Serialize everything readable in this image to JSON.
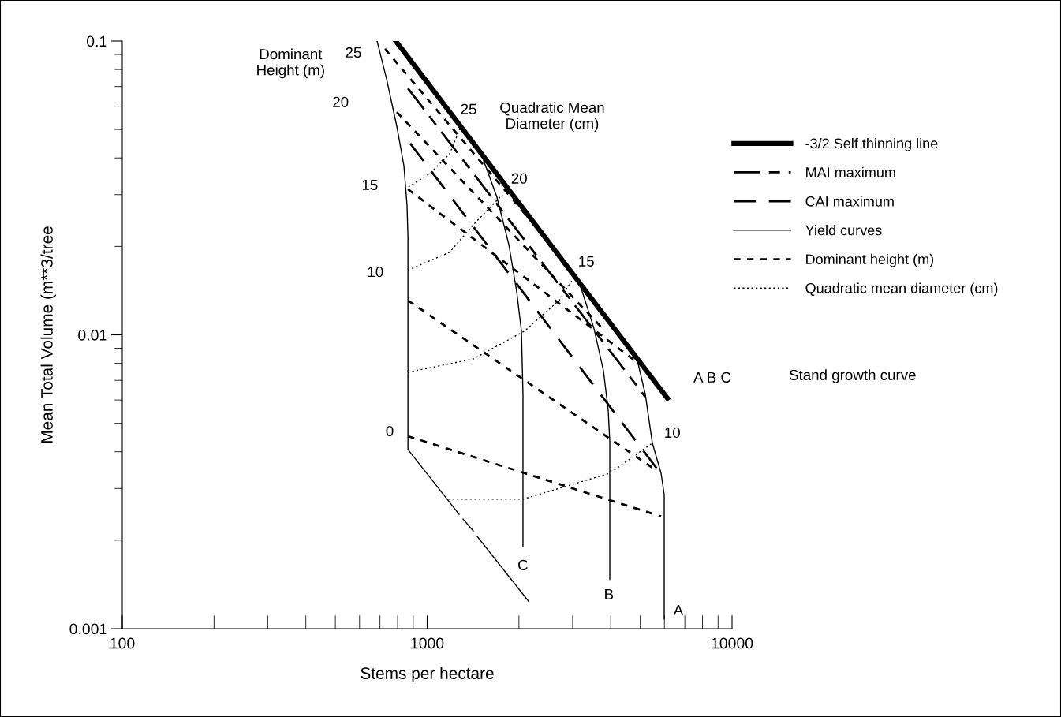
{
  "chart_data": {
    "type": "line",
    "xlabel": "Stems per hectare",
    "ylabel": "Mean Total Volume (m**3/tree",
    "log": "xy",
    "grid": false,
    "legend": "right",
    "xlim": [
      100,
      10000
    ],
    "xticks": [
      100,
      1000,
      10000
    ],
    "ylim": [
      0.001,
      0.1
    ],
    "yticks": [
      0.001,
      0.01,
      0.1
    ],
    "series": [
      {
        "name": "-3/2 Self thinning line",
        "color": "#000000",
        "line_style": "solid",
        "x": [
          789,
          6136
        ],
        "values": [
          0.1,
          0.00608
        ]
      },
      {
        "name": "MAI maximum",
        "color": "#000000",
        "line_style": "dashed",
        "x": [
          865,
          5194
        ],
        "values": [
          0.069,
          0.00615
        ]
      },
      {
        "name": "CAI maximum",
        "color": "#000000",
        "line_style": "dashed",
        "x": [
          880,
          5747
        ],
        "values": [
          0.0448,
          0.00344
        ]
      },
      {
        "name": "Yield curves",
        "color": "#000000",
        "line_style": "solid",
        "x": [
          685,
          736,
          795,
          839,
          859,
          865,
          865,
          1273
        ],
        "values": [
          0.1,
          0.0743,
          0.0513,
          0.0376,
          0.0276,
          0.0216,
          0.00407,
          0.00245
        ]
      },
      {
        "color": "#000000",
        "line_style": "solid",
        "x": [
          1312,
          1417
        ],
        "values": [
          0.00236,
          0.00215
        ]
      },
      {
        "color": "#000000",
        "line_style": "solid",
        "x": [
          1460,
          2150
        ],
        "values": [
          0.00206,
          0.00124
        ]
      },
      {
        "color": "#000000",
        "line_style": "solid",
        "x": [
          1504,
          1694,
          1853,
          1967,
          2038,
          2062,
          2062
        ],
        "values": [
          0.0413,
          0.0294,
          0.0203,
          0.014,
          0.0103,
          0.00627,
          0.0019
        ]
      },
      {
        "color": "#000000",
        "line_style": "solid",
        "x": [
          3167,
          3526,
          3786,
          3925,
          3972,
          3972
        ],
        "values": [
          0.0149,
          0.0105,
          0.00755,
          0.00554,
          0.00433,
          0.00147
        ]
      },
      {
        "color": "#000000",
        "line_style": "solid",
        "x": [
          4864,
          5194,
          5478,
          5850,
          5991,
          5991
        ],
        "values": [
          0.00839,
          0.00627,
          0.00428,
          0.00338,
          0.00286,
          0.00108
        ]
      },
      {
        "name": "Dominant height (m)",
        "color": "#000000",
        "line_style": "dashed",
        "x": [
          727,
          2422
        ],
        "values": [
          0.094,
          0.0216
        ]
      },
      {
        "color": "#000000",
        "line_style": "dashed",
        "x": [
          795,
          3832
        ],
        "values": [
          0.0573,
          0.0103
        ]
      },
      {
        "color": "#000000",
        "line_style": "dashed",
        "x": [
          865,
          5101
        ],
        "values": [
          0.0313,
          0.00779
        ]
      },
      {
        "color": "#000000",
        "line_style": "dashed",
        "x": [
          865,
          5679
        ],
        "values": [
          0.0131,
          0.00344
        ]
      },
      {
        "color": "#000000",
        "line_style": "dashed",
        "x": [
          865,
          5850
        ],
        "values": [
          0.00452,
          0.00241
        ]
      },
      {
        "name": "Quadratic mean diameter (cm)",
        "color": "#000000",
        "line_style": "dotted",
        "x": [
          844,
          1021,
          1185,
          1281
        ],
        "values": [
          0.0313,
          0.0354,
          0.0413,
          0.0503
        ]
      },
      {
        "color": "#000000",
        "line_style": "dotted",
        "x": [
          865,
          1185,
          1417,
          1767
        ],
        "values": [
          0.0166,
          0.0191,
          0.0237,
          0.03
        ]
      },
      {
        "color": "#000000",
        "line_style": "dotted",
        "x": [
          865,
          1417,
          2087,
          2729,
          3038
        ],
        "values": [
          0.00746,
          0.00828,
          0.0103,
          0.0132,
          0.0158
        ]
      },
      {
        "color": "#000000",
        "line_style": "dotted",
        "x": [
          1171,
          2062,
          3972,
          5478
        ],
        "values": [
          0.00276,
          0.00276,
          0.00338,
          0.00428
        ]
      }
    ],
    "annotations": [
      "Dominant\nHeight (m)",
      "Quadratic Mean\nDiameter (cm)",
      "25",
      "20",
      "15",
      "10",
      "0",
      "25",
      "20",
      "15",
      "10",
      "C",
      "B",
      "A",
      "A B C",
      "Stand growth curve"
    ]
  }
}
